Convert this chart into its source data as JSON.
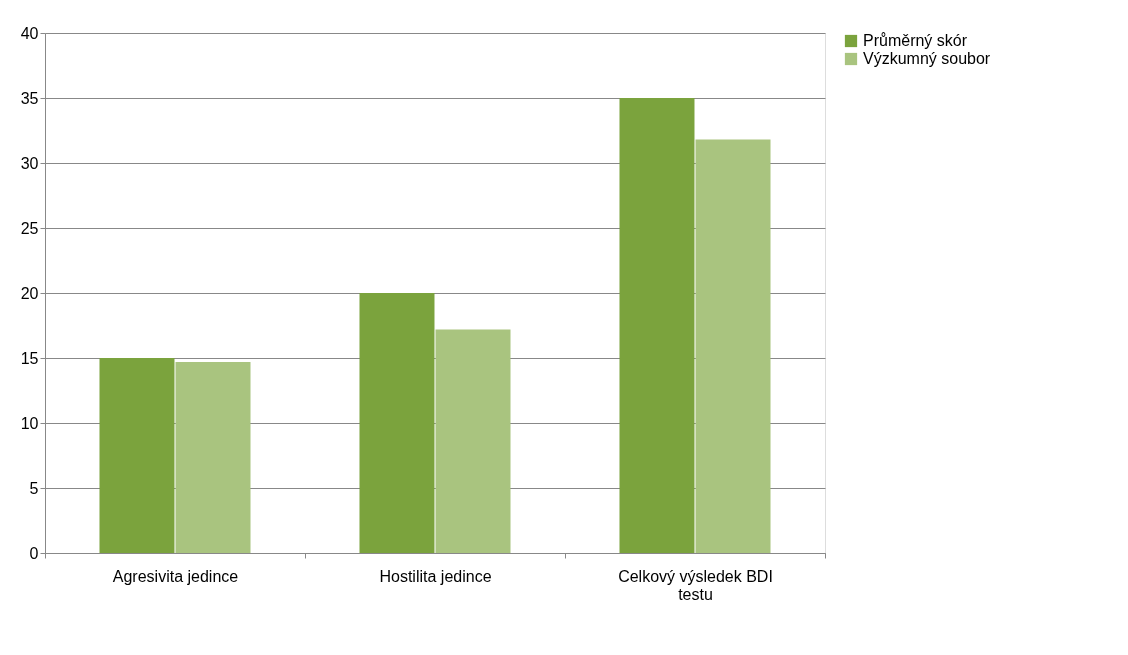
{
  "chart_data": {
    "type": "bar",
    "categories": [
      "Agresivita jedince",
      "Hostilita jedince",
      "Celkový výsledek BDI testu"
    ],
    "series": [
      {
        "name": "Průměrný skór",
        "color": "#7ba33d",
        "values": [
          15,
          20,
          35
        ]
      },
      {
        "name": "Výzkumný soubor",
        "color": "#a9c47f",
        "values": [
          14.7,
          17.2,
          31.8
        ]
      }
    ],
    "ylim": [
      0,
      40
    ],
    "yticks": [
      0,
      5,
      10,
      15,
      20,
      25,
      30,
      35,
      40
    ],
    "grid": "y",
    "legend": "right"
  }
}
